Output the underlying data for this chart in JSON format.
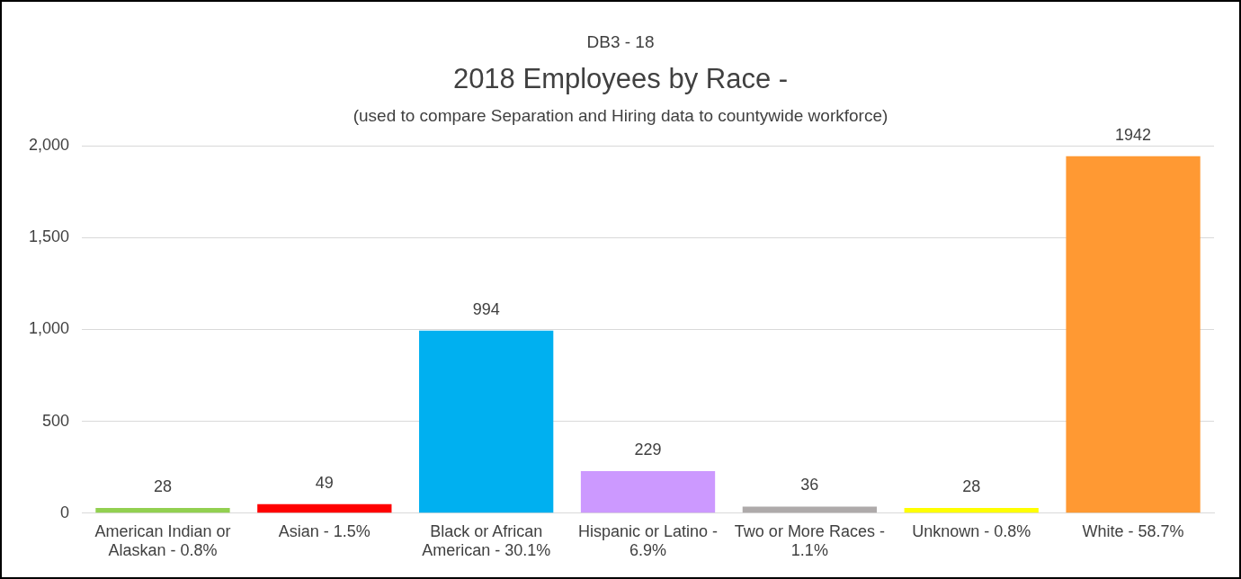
{
  "chart_data": {
    "type": "bar",
    "title": "2018 Employees by Race -",
    "subtitle": "(used to compare Separation and Hiring data to countywide workforce)",
    "annotations": [
      "DB3 - 18"
    ],
    "categories": [
      "American Indian or Alaskan - 0.8%",
      "Asian - 1.5%",
      "Black or African American - 30.1%",
      "Hispanic or Latino - 6.9%",
      "Two or More Races - 1.1%",
      "Unknown - 0.8%",
      "White - 58.7%"
    ],
    "values": [
      28,
      49,
      994,
      229,
      36,
      28,
      1942
    ],
    "colors": [
      "#92d050",
      "#ff0000",
      "#00b0f0",
      "#cc99ff",
      "#aeaaaa",
      "#ffff00",
      "#ff9933"
    ],
    "ylim": [
      0,
      2000
    ],
    "yticks": [
      {
        "value": 0,
        "label": "0"
      },
      {
        "value": 500,
        "label": "500"
      },
      {
        "value": 1000,
        "label": "1,000"
      },
      {
        "value": 1500,
        "label": "1,500"
      },
      {
        "value": 2000,
        "label": "2,000"
      }
    ],
    "grid": "y",
    "data_labels": true,
    "legend": false
  }
}
